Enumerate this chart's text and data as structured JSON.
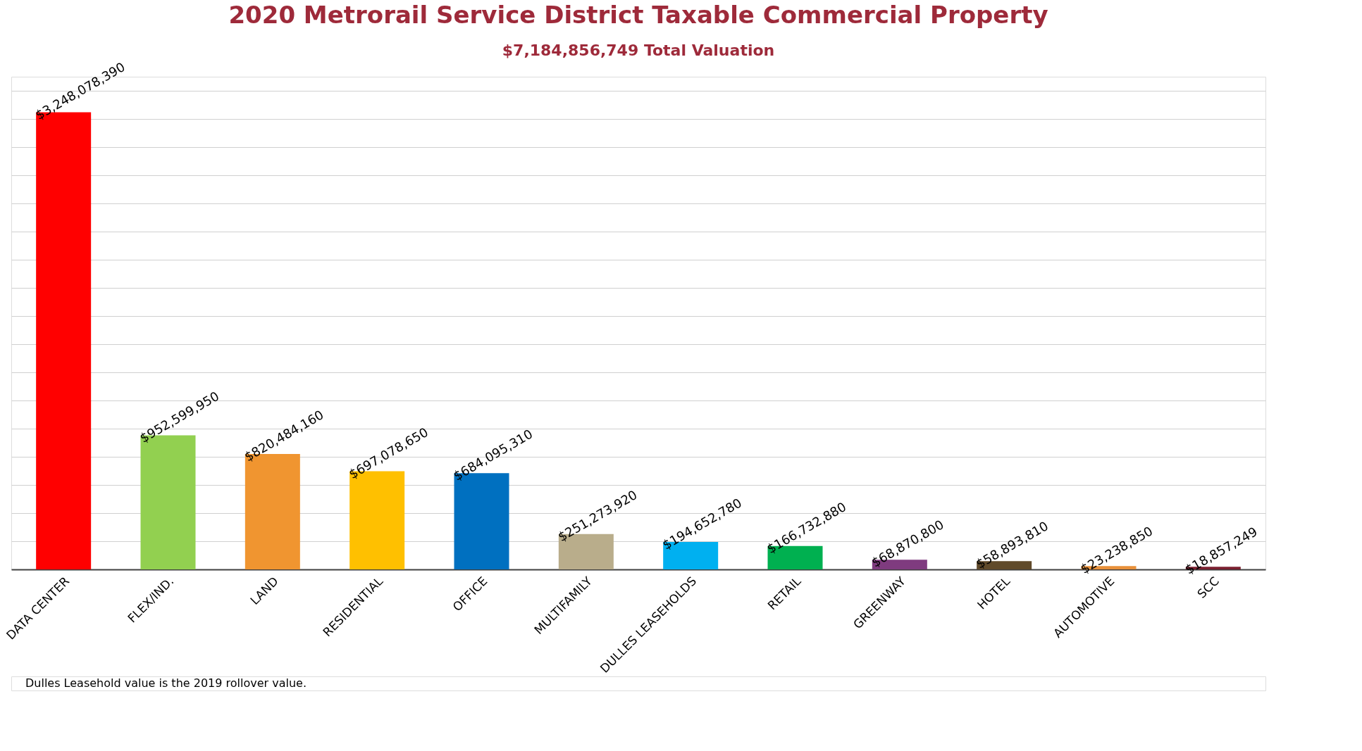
{
  "chart_data": {
    "type": "bar",
    "title": "2020 Metrorail Service District Taxable Commercial Property",
    "subtitle": "$7,184,856,749 Total Valuation",
    "categories": [
      "DATA CENTER",
      "FLEX/IND.",
      "LAND",
      "RESIDENTIAL",
      "OFFICE",
      "MULTIFAMILY",
      "DULLES LEASEHOLDS",
      "RETAIL",
      "GREENWAY",
      "HOTEL",
      "AUTOMOTIVE",
      "SCC"
    ],
    "values": [
      3248078390,
      952599950,
      820484160,
      697078650,
      684095310,
      251273920,
      194652780,
      166732880,
      68870800,
      58893810,
      23238850,
      18857249
    ],
    "colors": [
      "#ff0000",
      "#92d050",
      "#f09530",
      "#ffc000",
      "#0070c0",
      "#b9ad8b",
      "#00b0f0",
      "#00b050",
      "#7f3b7f",
      "#604a2a",
      "#e8903a",
      "#7b2030"
    ],
    "value_labels": [
      "$3,248,078,390",
      "$952,599,950",
      "$820,484,160",
      "$697,078,650",
      "$684,095,310",
      "$251,273,920",
      "$194,652,780",
      "$166,732,880",
      "$68,870,800",
      "$58,893,810",
      "$23,238,850",
      "$18,857,249"
    ],
    "tick_labels": "x",
    "grid": "y",
    "legend": false,
    "annotations": [
      "Dulles Leasehold value is the 2019 rollover value."
    ]
  }
}
